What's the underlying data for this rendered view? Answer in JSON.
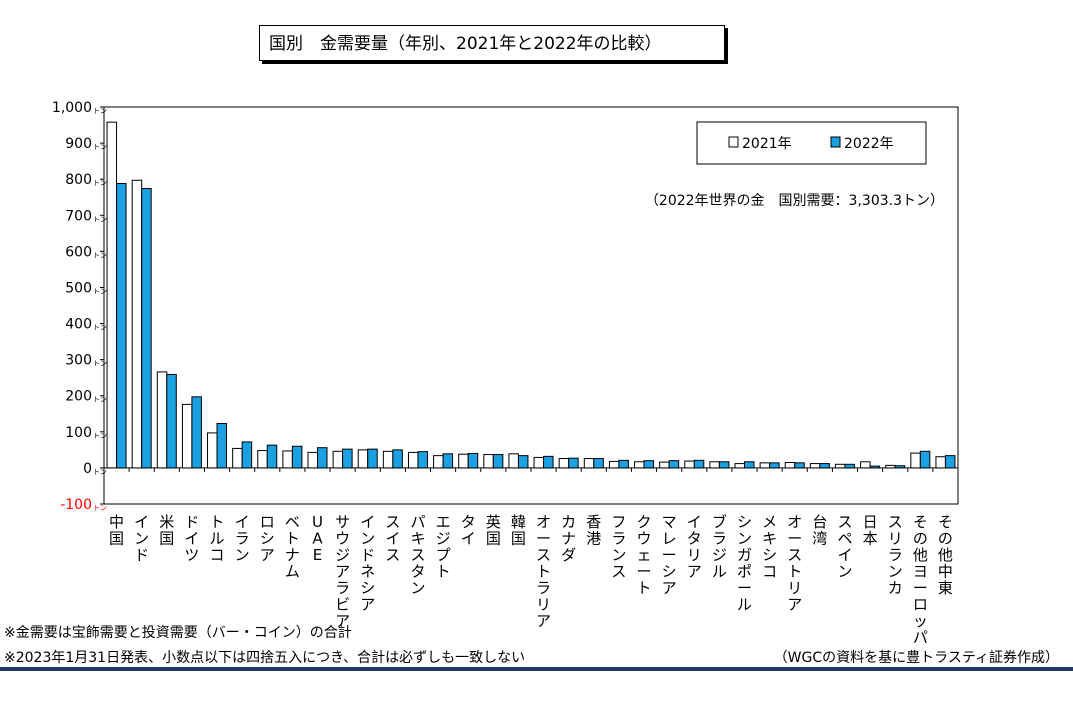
{
  "title": "国別　金需要量（年別、2021年と2022年の比較）",
  "notes": [
    "※金需要は宝飾需要と投資需要（バー・コイン）の合計",
    "※2023年1月31日発表、小数点以下は四捨五入につき、合計は必ずしも一致しない"
  ],
  "source": "（WGCの資料を基に豊トラスティ証券作成）",
  "colors": {
    "s2021": "#ffffff",
    "s2022": "#1ba1e2",
    "negative_tick": "#ff0000"
  },
  "chart_data": {
    "type": "bar",
    "title": "国別　金需要量（年別、2021年と2022年の比較）",
    "annotation": "（2022年世界の金　国別需要：3,303.3トン）",
    "y_unit": "トン",
    "ylim": [
      -100,
      1000
    ],
    "yticks": [
      -100,
      0,
      100,
      200,
      300,
      400,
      500,
      600,
      700,
      800,
      900,
      1000
    ],
    "ytick_labels": [
      "-100",
      "0",
      "100",
      "200",
      "300",
      "400",
      "500",
      "600",
      "700",
      "800",
      "900",
      "1,000"
    ],
    "legend_position": "top-right",
    "categories": [
      "中国",
      "インド",
      "米国",
      "ドイツ",
      "トルコ",
      "イラン",
      "ロシア",
      "ベトナム",
      "UAE",
      "サウジアラビア",
      "インドネシア",
      "スイス",
      "パキスタン",
      "エジプト",
      "タイ",
      "英国",
      "韓国",
      "オーストラリア",
      "カナダ",
      "香港",
      "フランス",
      "クウェート",
      "マレーシア",
      "イタリア",
      "ブラジル",
      "シンガポール",
      "メキシコ",
      "オーストリア",
      "台湾",
      "スペイン",
      "日本",
      "スリランカ",
      "その他ヨーロッパ",
      "その他中東"
    ],
    "series": [
      {
        "name": "2021年",
        "values": [
          958,
          797,
          266,
          176,
          97,
          54,
          48,
          47,
          43,
          46,
          50,
          46,
          43,
          34,
          38,
          37,
          39,
          29,
          26,
          26,
          18,
          17,
          16,
          19,
          17,
          12,
          14,
          15,
          12,
          10,
          17,
          7,
          41,
          31
        ]
      },
      {
        "name": "2022年",
        "values": [
          788,
          774,
          259,
          197,
          123,
          72,
          63,
          60,
          56,
          52,
          52,
          50,
          45,
          39,
          40,
          37,
          34,
          32,
          27,
          26,
          21,
          20,
          20,
          21,
          17,
          17,
          14,
          14,
          12,
          10,
          5,
          6,
          46,
          34
        ]
      }
    ]
  }
}
